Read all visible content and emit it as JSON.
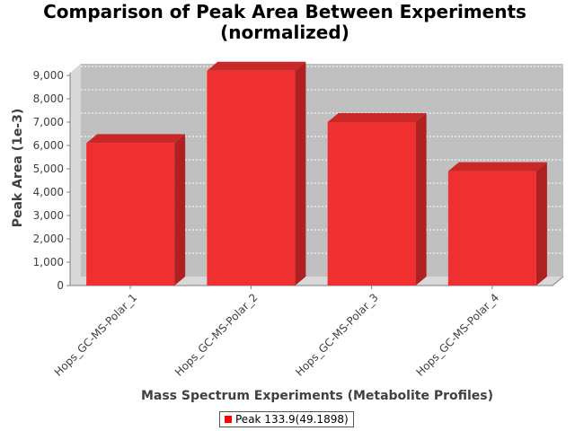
{
  "chart_data": {
    "type": "bar",
    "title": "Comparison of Peak Area Between Experiments",
    "subtitle": "(normalized)",
    "xlabel": "Mass Spectrum Experiments (Metabolite Profiles)",
    "ylabel": "Peak Area (1e-3)",
    "categories": [
      "Hops_GC-MS-Polar_1",
      "Hops_GC-MS-Polar_2",
      "Hops_GC-MS-Polar_3",
      "Hops_GC-MS-Polar_4"
    ],
    "series": [
      {
        "name": "Peak 133.9(49.1898)",
        "values": [
          6100,
          9200,
          7000,
          4900
        ]
      }
    ],
    "ylim": [
      0,
      9500
    ],
    "yticks": [
      0,
      1000,
      2000,
      3000,
      4000,
      5000,
      6000,
      7000,
      8000,
      9000
    ],
    "ytick_labels": [
      "0",
      "1,000",
      "2,000",
      "3,000",
      "4,000",
      "5,000",
      "6,000",
      "7,000",
      "8,000",
      "9,000"
    ],
    "grid": true,
    "legend_position": "bottom",
    "colors": {
      "bar_front": "#f03030",
      "bar_side": "#b02020",
      "bar_top": "#c82828",
      "plot_background": "#c0c0c0",
      "plot_wall": "#d8d8d8",
      "gridline": "#ffffff"
    }
  }
}
